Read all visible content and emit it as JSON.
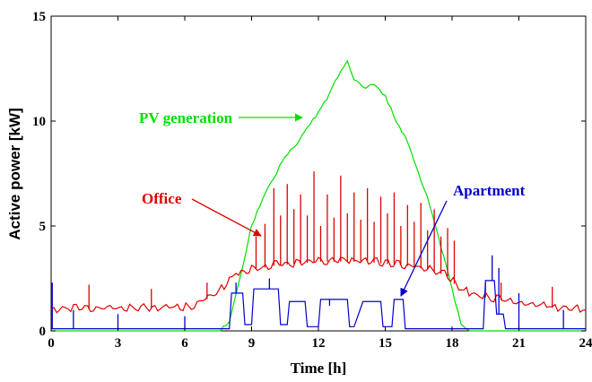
{
  "chart_data": {
    "type": "line",
    "title": "",
    "xlabel": "Time [h]",
    "ylabel": "Active power [kW]",
    "xlim": [
      0,
      24
    ],
    "ylim": [
      0,
      15
    ],
    "xticks": [
      "0",
      "3",
      "6",
      "9",
      "12",
      "15",
      "18",
      "21",
      "24"
    ],
    "yticks": [
      "0",
      "5",
      "10",
      "15"
    ],
    "grid": false,
    "legend": "none",
    "series": [
      {
        "name": "PV generation",
        "color": "#00e000",
        "x": [
          0,
          7.6,
          8.0,
          8.4,
          8.8,
          9.0,
          9.5,
          10.0,
          10.5,
          11.0,
          11.5,
          12.0,
          12.5,
          13.0,
          13.3,
          13.6,
          14.0,
          14.5,
          15.0,
          15.5,
          16.0,
          16.5,
          17.0,
          17.5,
          18.0,
          18.4,
          18.8,
          24
        ],
        "values": [
          0,
          0,
          0.5,
          2.2,
          4.0,
          5.0,
          6.3,
          7.3,
          8.3,
          8.9,
          9.7,
          10.4,
          11.3,
          12.4,
          12.9,
          12.0,
          11.6,
          11.7,
          11.2,
          10.0,
          9.0,
          7.5,
          6.0,
          4.0,
          2.0,
          0.3,
          0,
          0
        ]
      },
      {
        "name": "Office",
        "color": "#e00000",
        "x": [
          0,
          6.3,
          7.3,
          8.0,
          8.3,
          9.0,
          10.0,
          11.0,
          12.0,
          13.0,
          14.0,
          15.0,
          16.0,
          17.0,
          17.8,
          18.3,
          19.0,
          20.0,
          21.0,
          22.0,
          23.0,
          24.0
        ],
        "values": [
          1.0,
          1.1,
          1.7,
          2.3,
          2.7,
          2.9,
          3.1,
          3.2,
          3.3,
          3.3,
          3.3,
          3.2,
          3.1,
          2.9,
          2.6,
          2.0,
          1.7,
          1.5,
          1.3,
          1.2,
          1.0,
          1.0
        ],
        "spikes": [
          {
            "x": 9.2,
            "y": 4.5
          },
          {
            "x": 9.6,
            "y": 5.1
          },
          {
            "x": 10.0,
            "y": 6.8
          },
          {
            "x": 10.3,
            "y": 5.5
          },
          {
            "x": 10.6,
            "y": 7.0
          },
          {
            "x": 10.9,
            "y": 5.8
          },
          {
            "x": 11.2,
            "y": 6.5
          },
          {
            "x": 11.5,
            "y": 5.5
          },
          {
            "x": 11.8,
            "y": 7.6
          },
          {
            "x": 12.1,
            "y": 5.0
          },
          {
            "x": 12.4,
            "y": 6.5
          },
          {
            "x": 12.7,
            "y": 5.4
          },
          {
            "x": 13.0,
            "y": 7.4
          },
          {
            "x": 13.3,
            "y": 5.6
          },
          {
            "x": 13.6,
            "y": 6.6
          },
          {
            "x": 13.9,
            "y": 5.3
          },
          {
            "x": 14.2,
            "y": 6.8
          },
          {
            "x": 14.5,
            "y": 5.2
          },
          {
            "x": 14.8,
            "y": 6.4
          },
          {
            "x": 15.1,
            "y": 5.6
          },
          {
            "x": 15.4,
            "y": 6.6
          },
          {
            "x": 15.7,
            "y": 5.0
          },
          {
            "x": 16.0,
            "y": 6.0
          },
          {
            "x": 16.3,
            "y": 5.2
          },
          {
            "x": 16.6,
            "y": 6.1
          },
          {
            "x": 16.9,
            "y": 4.8
          },
          {
            "x": 17.2,
            "y": 5.8
          },
          {
            "x": 17.5,
            "y": 4.5
          },
          {
            "x": 17.8,
            "y": 4.9
          },
          {
            "x": 18.1,
            "y": 4.3
          },
          {
            "x": 1.7,
            "y": 2.2
          },
          {
            "x": 4.5,
            "y": 2.0
          },
          {
            "x": 7.0,
            "y": 2.3
          },
          {
            "x": 19.5,
            "y": 2.3
          },
          {
            "x": 20.2,
            "y": 2.3
          },
          {
            "x": 22.5,
            "y": 2.1
          }
        ]
      },
      {
        "name": "Apartment",
        "color": "#0000cc",
        "x": [
          0,
          8.0,
          8.1,
          8.6,
          8.7,
          9.0,
          9.1,
          10.2,
          10.3,
          10.6,
          10.7,
          11.4,
          11.5,
          12.0,
          12.1,
          13.3,
          13.4,
          13.6,
          14.0,
          14.8,
          14.9,
          15.3,
          15.4,
          15.8,
          15.9,
          18.3,
          18.5,
          19.4,
          19.5,
          19.9,
          20.0,
          20.3,
          20.4,
          24.0
        ],
        "values": [
          0.1,
          0.1,
          1.8,
          1.8,
          0.3,
          0.3,
          2.0,
          2.0,
          0.3,
          0.3,
          1.4,
          1.4,
          0.2,
          0.2,
          1.5,
          1.5,
          0.2,
          0.2,
          1.4,
          1.4,
          0.2,
          0.2,
          1.5,
          1.5,
          0.1,
          0.1,
          0.1,
          0.1,
          2.4,
          2.4,
          0.8,
          0.8,
          0.1,
          0.1
        ],
        "spikes": [
          {
            "x": 0.05,
            "y": 2.3
          },
          {
            "x": 1.0,
            "y": 1.0
          },
          {
            "x": 3.0,
            "y": 0.8
          },
          {
            "x": 6.0,
            "y": 0.7
          },
          {
            "x": 8.3,
            "y": 2.3
          },
          {
            "x": 9.8,
            "y": 2.5
          },
          {
            "x": 12.5,
            "y": 1.2
          },
          {
            "x": 19.8,
            "y": 3.6
          },
          {
            "x": 20.1,
            "y": 3.0
          },
          {
            "x": 21.0,
            "y": 1.8
          },
          {
            "x": 23.0,
            "y": 1.0
          }
        ]
      }
    ],
    "annotations": [
      {
        "text": "PV generation",
        "color": "#00e000",
        "series": "PV generation"
      },
      {
        "text": "Office",
        "color": "#e00000",
        "series": "Office"
      },
      {
        "text": "Apartment",
        "color": "#0000cc",
        "series": "Apartment"
      }
    ]
  }
}
